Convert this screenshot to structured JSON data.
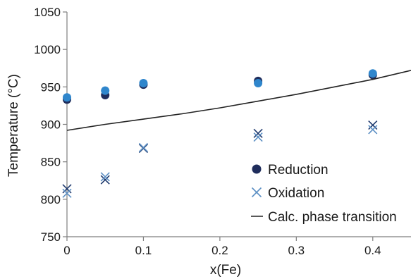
{
  "chart_data": {
    "type": "scatter",
    "xlabel": "x(Fe)",
    "ylabel": "Temperature (°C)",
    "xlim": [
      0,
      0.45
    ],
    "ylim": [
      750,
      1050
    ],
    "x_ticks": [
      0,
      0.1,
      0.2,
      0.3,
      0.4
    ],
    "x_tick_labels": [
      "0",
      "0.1",
      "0.2",
      "0.3",
      "0.4"
    ],
    "y_ticks": [
      750,
      800,
      850,
      900,
      950,
      1000,
      1050
    ],
    "y_tick_labels": [
      "750",
      "800",
      "850",
      "900",
      "950",
      "1000",
      "1050"
    ],
    "grid": false,
    "legend_position": "bottom-right",
    "series": [
      {
        "name": "Reduction",
        "marker": "circle",
        "colors": [
          "#1f2d5c",
          "#2f86cc"
        ],
        "points": [
          {
            "x": 0,
            "y": 933,
            "color": "#1f2d5c"
          },
          {
            "x": 0,
            "y": 936,
            "color": "#2f86cc"
          },
          {
            "x": 0.05,
            "y": 939,
            "color": "#1f2d5c"
          },
          {
            "x": 0.05,
            "y": 945,
            "color": "#2f86cc"
          },
          {
            "x": 0.1,
            "y": 953,
            "color": "#1f2d5c"
          },
          {
            "x": 0.1,
            "y": 955,
            "color": "#2f86cc"
          },
          {
            "x": 0.25,
            "y": 958,
            "color": "#1f2d5c"
          },
          {
            "x": 0.25,
            "y": 955,
            "color": "#2f86cc"
          },
          {
            "x": 0.4,
            "y": 966,
            "color": "#1f2d5c"
          },
          {
            "x": 0.4,
            "y": 968,
            "color": "#2f86cc"
          }
        ]
      },
      {
        "name": "Oxidation",
        "marker": "x",
        "colors": [
          "#1f3a6e",
          "#5b8fc4"
        ],
        "points": [
          {
            "x": 0,
            "y": 814,
            "color": "#1f3a6e"
          },
          {
            "x": 0,
            "y": 808,
            "color": "#5b8fc4"
          },
          {
            "x": 0.05,
            "y": 826,
            "color": "#1f3a6e"
          },
          {
            "x": 0.05,
            "y": 830,
            "color": "#5b8fc4"
          },
          {
            "x": 0.1,
            "y": 868,
            "color": "#1f3a6e"
          },
          {
            "x": 0.1,
            "y": 869,
            "color": "#5b8fc4"
          },
          {
            "x": 0.25,
            "y": 888,
            "color": "#1f3a6e"
          },
          {
            "x": 0.25,
            "y": 883,
            "color": "#5b8fc4"
          },
          {
            "x": 0.4,
            "y": 899,
            "color": "#1f3a6e"
          },
          {
            "x": 0.4,
            "y": 893,
            "color": "#5b8fc4"
          }
        ]
      },
      {
        "name": "Calc. phase transition",
        "marker": "line",
        "color": "#222222",
        "x": [
          0,
          0.05,
          0.1,
          0.15,
          0.2,
          0.25,
          0.3,
          0.35,
          0.4,
          0.45
        ],
        "y": [
          892,
          900,
          907,
          914,
          922,
          931,
          940,
          950,
          960,
          972
        ]
      }
    ]
  }
}
